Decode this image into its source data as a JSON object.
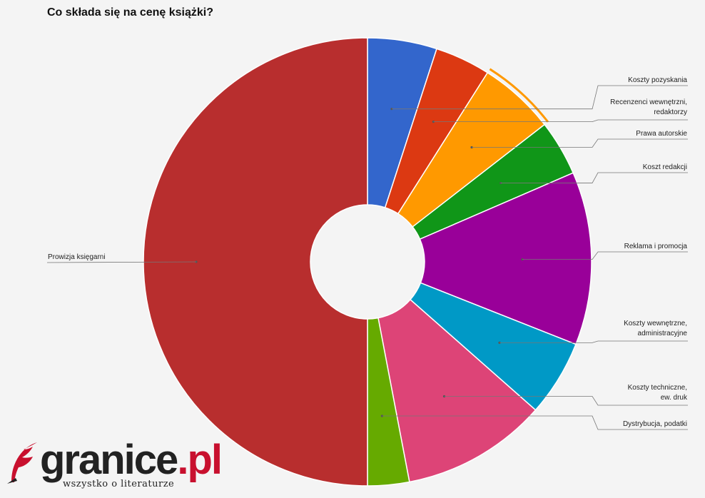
{
  "chart_data": {
    "type": "pie",
    "style": "donut",
    "title": "Co składa się na cenę książki?",
    "legend": "callout-labels",
    "slices": [
      {
        "label": "Koszty pozyskania",
        "value": 5.0,
        "color": "#3366cc"
      },
      {
        "label": "Recenzenci wewnętrzni, redaktorzy",
        "value": 4.0,
        "color": "#dc3912"
      },
      {
        "label": "Prawa autorskie",
        "value": 5.5,
        "color": "#ff9900"
      },
      {
        "label": "Koszt redakcji",
        "value": 4.0,
        "color": "#109618"
      },
      {
        "label": "Reklama i promocja",
        "value": 12.5,
        "color": "#990099"
      },
      {
        "label": "Koszty wewnętrzne, administracyjne",
        "value": 5.5,
        "color": "#0099c6"
      },
      {
        "label": "Koszty techniczne, ew. druk",
        "value": 10.5,
        "color": "#dd4477"
      },
      {
        "label": "Dystrybucja, podatki",
        "value": 3.0,
        "color": "#66aa00"
      },
      {
        "label": "Prowizja księgarni",
        "value": 50.0,
        "color": "#b82e2e"
      }
    ]
  },
  "logo": {
    "wordmark": "granice",
    "tld": ".pl",
    "tagline": "wszystko o literaturze"
  }
}
